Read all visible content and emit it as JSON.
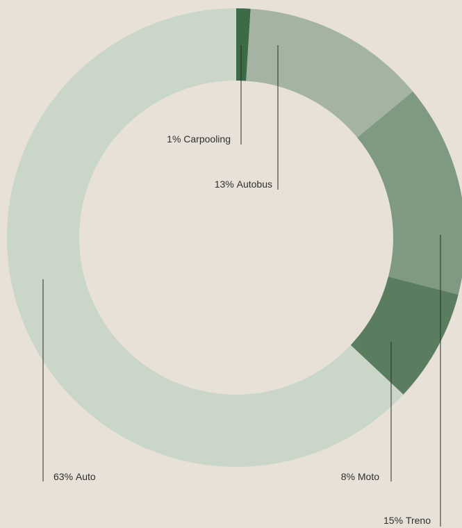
{
  "chart_data": {
    "type": "donut",
    "categories": [
      "Carpooling",
      "Autobus",
      "Treno",
      "Moto",
      "Auto"
    ],
    "values": [
      1,
      13,
      15,
      8,
      63
    ],
    "value_labels": [
      "1%",
      "13%",
      "15%",
      "8%",
      "63%"
    ],
    "colors": [
      "#3d6a47",
      "#a5b4a2",
      "#7f9a81",
      "#5a7d5f",
      "#c9d6c8"
    ]
  }
}
